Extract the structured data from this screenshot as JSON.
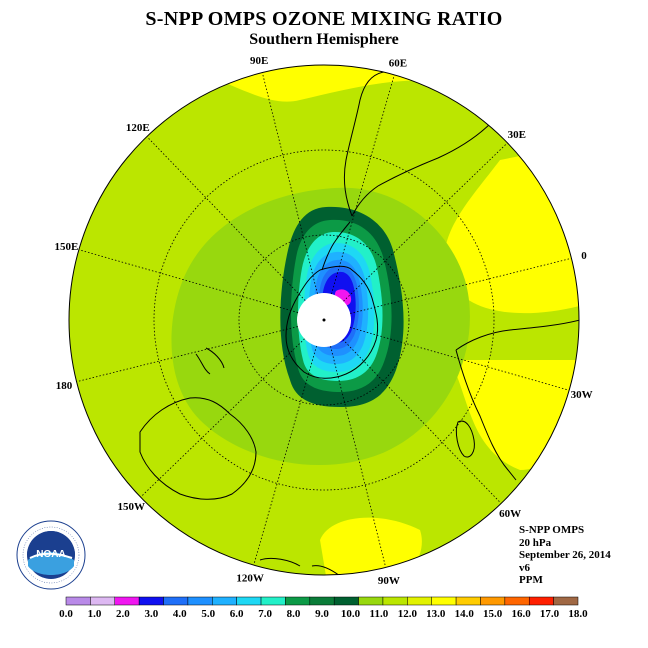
{
  "header": {
    "title": "S-NPP OMPS OZONE MIXING RATIO",
    "subtitle": "Southern Hemisphere"
  },
  "map": {
    "longitude_labels": [
      {
        "text": "0",
        "lon": 0
      },
      {
        "text": "30W",
        "lon": -30
      },
      {
        "text": "60W",
        "lon": -60
      },
      {
        "text": "90W",
        "lon": -90
      },
      {
        "text": "120W",
        "lon": -120
      },
      {
        "text": "150W",
        "lon": -150
      },
      {
        "text": "180",
        "lon": 180
      },
      {
        "text": "150E",
        "lon": 150
      },
      {
        "text": "120E",
        "lon": 120
      },
      {
        "text": "90E",
        "lon": 90
      },
      {
        "text": "60E",
        "lon": 60
      },
      {
        "text": "30E",
        "lon": 30
      }
    ]
  },
  "info": {
    "instrument": "S-NPP OMPS",
    "level": "20 hPa",
    "date": "September 26, 2014",
    "version": "v6",
    "units": "PPM"
  },
  "logo": {
    "text": "NOAA",
    "ring_text": "NATIONAL OCEANIC AND ATMOSPHERIC ADMINISTRATION · U.S. DEPARTMENT OF COMMERCE"
  },
  "colorbar": {
    "colors": [
      "#b98ae8",
      "#ddb8f2",
      "#f016f0",
      "#1010f0",
      "#1f6ff8",
      "#1e90ff",
      "#1fb1ff",
      "#1ed8f4",
      "#22f0c8",
      "#0c9a46",
      "#0a7c38",
      "#006030",
      "#98d80e",
      "#bbe600",
      "#e2f200",
      "#ffff00",
      "#ffcc00",
      "#ff9900",
      "#ff6600",
      "#ff1f00",
      "#a06844"
    ],
    "labels": [
      "0.0",
      "1.0",
      "2.0",
      "3.0",
      "4.0",
      "5.0",
      "6.0",
      "7.0",
      "8.0",
      "9.0",
      "10.0",
      "11.0",
      "12.0",
      "13.0",
      "14.0",
      "15.0",
      "16.0",
      "17.0",
      "18.0"
    ]
  }
}
